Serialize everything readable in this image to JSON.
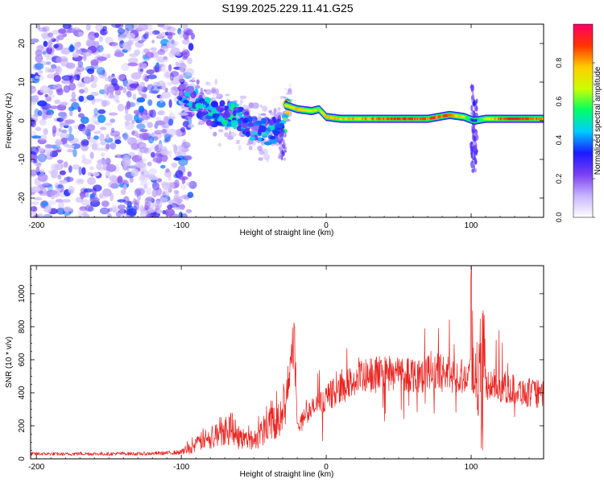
{
  "title": "S199.2025.229.11.41.G25",
  "chart_data": [
    {
      "type": "heatmap",
      "name": "spectrogram",
      "xlabel": "Height of straight line (km)",
      "ylabel": "Frequency (Hz)",
      "xlim": [
        -204,
        150
      ],
      "ylim": [
        -25,
        25
      ],
      "xticks": [
        -200,
        -100,
        0,
        100
      ],
      "yticks": [
        -20,
        -10,
        0,
        10,
        20
      ],
      "colorbar": {
        "label": "Normalized spectral amplitude",
        "range": [
          0,
          1
        ],
        "ticks": [
          0.0,
          0.2,
          0.4,
          0.6,
          0.8
        ],
        "stops": [
          "#ffffff",
          "#c8b4ff",
          "#7b3ff2",
          "#1a1aff",
          "#00ccff",
          "#00ff66",
          "#ccff00",
          "#ffcc00",
          "#ff3300",
          "#ff0066"
        ]
      },
      "trace_points": [
        {
          "x": -100,
          "f": 8,
          "amp": 0.35
        },
        {
          "x": -90,
          "f": 5,
          "amp": 0.45
        },
        {
          "x": -80,
          "f": 2,
          "amp": 0.45
        },
        {
          "x": -70,
          "f": 2,
          "amp": 0.45
        },
        {
          "x": -60,
          "f": 1,
          "amp": 0.45
        },
        {
          "x": -50,
          "f": -2,
          "amp": 0.4
        },
        {
          "x": -40,
          "f": -3,
          "amp": 0.45
        },
        {
          "x": -30,
          "f": -2,
          "amp": 0.35
        },
        {
          "x": -28,
          "f": 4,
          "amp": 0.7
        },
        {
          "x": -20,
          "f": 3,
          "amp": 0.75
        },
        {
          "x": -10,
          "f": 2.5,
          "amp": 0.7
        },
        {
          "x": -5,
          "f": 3,
          "amp": 0.6
        },
        {
          "x": 0,
          "f": 1,
          "amp": 0.8
        },
        {
          "x": 10,
          "f": 0.5,
          "amp": 0.75
        },
        {
          "x": 30,
          "f": 0.5,
          "amp": 0.8
        },
        {
          "x": 50,
          "f": 0.5,
          "amp": 0.9
        },
        {
          "x": 70,
          "f": 0.5,
          "amp": 0.85
        },
        {
          "x": 85,
          "f": 1.5,
          "amp": 0.85
        },
        {
          "x": 95,
          "f": 1,
          "amp": 0.7
        },
        {
          "x": 102,
          "f": 0,
          "amp": 0.3
        },
        {
          "x": 110,
          "f": 0.5,
          "amp": 0.7
        },
        {
          "x": 130,
          "f": 0.5,
          "amp": 0.95
        },
        {
          "x": 150,
          "f": 0.5,
          "amp": 0.8
        }
      ]
    },
    {
      "type": "line",
      "name": "snr",
      "xlabel": "Height of straight line (km)",
      "ylabel": "SNR (10 * v/v)",
      "xlim": [
        -204,
        150
      ],
      "ylim": [
        0,
        1170
      ],
      "xticks": [
        -200,
        -100,
        0,
        100
      ],
      "yticks": [
        0,
        200,
        400,
        600,
        800,
        1000
      ],
      "series": [
        {
          "name": "SNR",
          "color": "#e8231f",
          "x": [
            -204,
            -190,
            -180,
            -170,
            -160,
            -150,
            -140,
            -130,
            -120,
            -110,
            -100,
            -95,
            -90,
            -85,
            -80,
            -75,
            -70,
            -65,
            -60,
            -55,
            -50,
            -45,
            -40,
            -35,
            -30,
            -27,
            -25,
            -23,
            -21,
            -20,
            -18,
            -15,
            -10,
            -5,
            0,
            5,
            10,
            15,
            20,
            25,
            30,
            35,
            40,
            45,
            50,
            55,
            60,
            65,
            70,
            75,
            80,
            85,
            90,
            95,
            100,
            103,
            105,
            106,
            107,
            108,
            109,
            110,
            112,
            115,
            120,
            125,
            130,
            135,
            140,
            145,
            150
          ],
          "values": [
            30,
            30,
            28,
            32,
            30,
            30,
            32,
            30,
            32,
            35,
            40,
            60,
            80,
            120,
            110,
            160,
            180,
            200,
            130,
            120,
            110,
            160,
            220,
            250,
            290,
            320,
            500,
            700,
            500,
            220,
            210,
            260,
            300,
            330,
            370,
            400,
            430,
            450,
            470,
            490,
            500,
            510,
            520,
            525,
            520,
            515,
            515,
            518,
            520,
            525,
            520,
            520,
            500,
            510,
            520,
            470,
            300,
            700,
            80,
            500,
            750,
            480,
            450,
            450,
            440,
            430,
            420,
            410,
            400,
            395,
            385
          ]
        }
      ],
      "annotations": [
        {
          "x": 100,
          "peak": 1170
        },
        {
          "x": 108,
          "peak": 930
        },
        {
          "x": -22,
          "peak": 840
        }
      ]
    }
  ]
}
